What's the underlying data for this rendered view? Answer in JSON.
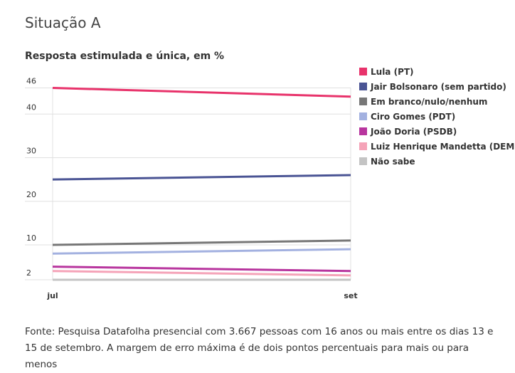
{
  "title": "Situação A",
  "subtitle": "Resposta estimulada e única, em %",
  "source": "Fonte: Pesquisa Datafolha presencial com 3.667 pessoas com 16 anos ou mais entre os dias 13 e 15 de setembro. A margem de erro máxima é de dois pontos percentuais para mais ou para menos",
  "chart_data": {
    "type": "line",
    "title": "Situação A",
    "subtitle": "Resposta estimulada e única, em %",
    "xlabel": "",
    "ylabel": "",
    "x": [
      "jul",
      "set"
    ],
    "yticks": [
      2,
      10,
      20,
      30,
      40,
      46
    ],
    "ylim": [
      2,
      46
    ],
    "grid": true,
    "legend_position": "right",
    "series": [
      {
        "name": "Lula (PT)",
        "color": "#e8336b",
        "values": [
          46,
          44
        ]
      },
      {
        "name": "Jair Bolsonaro (sem partido)",
        "color": "#4a5494",
        "values": [
          25,
          26
        ]
      },
      {
        "name": "Em branco/nulo/nenhum",
        "color": "#777777",
        "values": [
          10,
          11
        ]
      },
      {
        "name": "Ciro Gomes (PDT)",
        "color": "#a3b1e0",
        "values": [
          8,
          9
        ]
      },
      {
        "name": "João Doria (PSDB)",
        "color": "#b8359e",
        "values": [
          5,
          4
        ]
      },
      {
        "name": "Luiz Henrique Mandetta (DEM)",
        "color": "#f5a3b8",
        "values": [
          4,
          3
        ]
      },
      {
        "name": "Não sabe",
        "color": "#c4c4c4",
        "values": [
          2,
          2
        ]
      }
    ]
  }
}
